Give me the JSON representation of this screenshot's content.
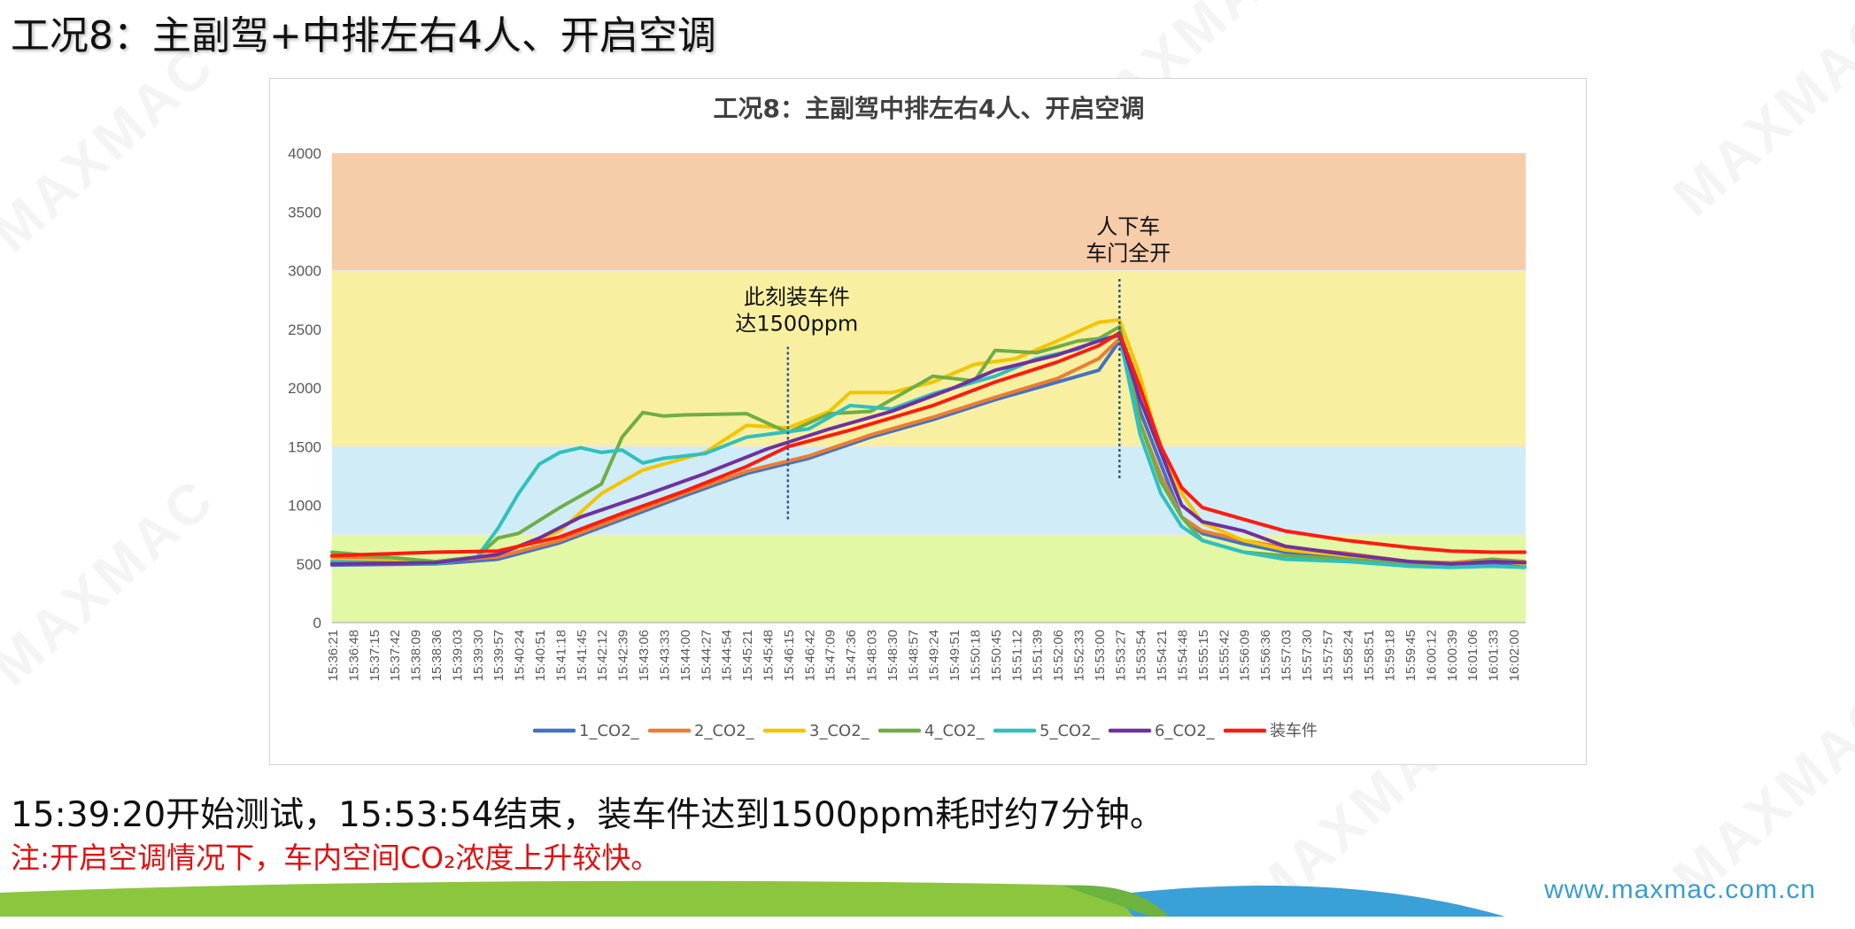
{
  "slide": {
    "title": "工况8：主副驾+中排左右4人、开启空调",
    "summary": "15:39:20开始测试，15:53:54结束，装车件达到1500ppm耗时约7分钟。",
    "note": "注:开启空调情况下，车内空间CO₂浓度上升较快。",
    "footer_url": "www.maxmac.com.cn",
    "watermark": "MAXMAC"
  },
  "chart_data": {
    "type": "line",
    "title": "工况8：主副驾中排左右4人、开启空调",
    "xlabel": "",
    "ylabel": "",
    "ylim": [
      0,
      4000
    ],
    "yticks": [
      0,
      500,
      1000,
      1500,
      2000,
      2500,
      3000,
      3500,
      4000
    ],
    "grid": false,
    "legend_position": "bottom",
    "x_tick_labels": [
      "15:36:21",
      "15:36:48",
      "15:37:15",
      "15:37:42",
      "15:38:09",
      "15:38:36",
      "15:39:03",
      "15:39:30",
      "15:39:57",
      "15:40:24",
      "15:40:51",
      "15:41:18",
      "15:41:45",
      "15:42:12",
      "15:42:39",
      "15:43:06",
      "15:43:33",
      "15:44:00",
      "15:44:27",
      "15:44:54",
      "15:45:21",
      "15:45:48",
      "15:46:15",
      "15:46:42",
      "15:47:09",
      "15:47:36",
      "15:48:03",
      "15:48:30",
      "15:48:57",
      "15:49:24",
      "15:49:51",
      "15:50:18",
      "15:50:45",
      "15:51:12",
      "15:51:39",
      "15:52:06",
      "15:52:33",
      "15:53:00",
      "15:53:27",
      "15:53:54",
      "15:54:21",
      "15:54:48",
      "15:55:15",
      "15:55:42",
      "15:56:09",
      "15:56:36",
      "15:57:03",
      "15:57:30",
      "15:57:57",
      "15:58:24",
      "15:58:51",
      "15:59:18",
      "15:59:45",
      "16:00:12",
      "16:00:39",
      "16:01:06",
      "16:01:33",
      "16:02:00"
    ],
    "bands": [
      {
        "from": 0,
        "to": 750,
        "color": "#e2f8a4"
      },
      {
        "from": 750,
        "to": 1500,
        "color": "#d0ecf6"
      },
      {
        "from": 1500,
        "to": 3000,
        "color": "#f8f0a0"
      },
      {
        "from": 3000,
        "to": 4000,
        "color": "#f7cca9"
      }
    ],
    "series": [
      {
        "name": "1_CO2_",
        "color": "#4472c4",
        "points": [
          [
            "15:36:21",
            490
          ],
          [
            "15:38:36",
            500
          ],
          [
            "15:39:57",
            540
          ],
          [
            "15:41:18",
            680
          ],
          [
            "15:42:39",
            880
          ],
          [
            "15:44:00",
            1080
          ],
          [
            "15:45:21",
            1270
          ],
          [
            "15:46:42",
            1400
          ],
          [
            "15:48:03",
            1580
          ],
          [
            "15:49:24",
            1730
          ],
          [
            "15:50:45",
            1900
          ],
          [
            "15:52:06",
            2050
          ],
          [
            "15:53:00",
            2150
          ],
          [
            "15:53:27",
            2400
          ],
          [
            "15:53:54",
            1800
          ],
          [
            "15:54:21",
            1350
          ],
          [
            "15:54:48",
            900
          ],
          [
            "15:55:15",
            760
          ],
          [
            "15:56:09",
            670
          ],
          [
            "15:57:03",
            600
          ],
          [
            "15:58:24",
            560
          ],
          [
            "15:59:45",
            510
          ],
          [
            "16:00:39",
            490
          ],
          [
            "16:01:33",
            500
          ],
          [
            "16:02:15",
            480
          ]
        ]
      },
      {
        "name": "2_CO2_",
        "color": "#ed7d31",
        "points": [
          [
            "15:36:21",
            560
          ],
          [
            "15:38:36",
            520
          ],
          [
            "15:39:57",
            560
          ],
          [
            "15:41:18",
            700
          ],
          [
            "15:42:39",
            900
          ],
          [
            "15:44:00",
            1100
          ],
          [
            "15:45:21",
            1290
          ],
          [
            "15:46:42",
            1420
          ],
          [
            "15:48:03",
            1600
          ],
          [
            "15:49:24",
            1750
          ],
          [
            "15:50:45",
            1920
          ],
          [
            "15:52:06",
            2080
          ],
          [
            "15:53:00",
            2250
          ],
          [
            "15:53:27",
            2420
          ],
          [
            "15:53:54",
            1700
          ],
          [
            "15:54:21",
            1250
          ],
          [
            "15:54:48",
            900
          ],
          [
            "15:55:15",
            780
          ],
          [
            "15:56:09",
            700
          ],
          [
            "15:57:03",
            640
          ],
          [
            "15:58:24",
            590
          ],
          [
            "15:59:45",
            520
          ],
          [
            "16:00:39",
            510
          ],
          [
            "16:01:33",
            540
          ],
          [
            "16:02:15",
            520
          ]
        ]
      },
      {
        "name": "3_CO2_",
        "color": "#f5c400",
        "points": [
          [
            "15:36:21",
            530
          ],
          [
            "15:38:36",
            520
          ],
          [
            "15:39:57",
            580
          ],
          [
            "15:41:18",
            780
          ],
          [
            "15:42:12",
            1100
          ],
          [
            "15:43:06",
            1300
          ],
          [
            "15:44:27",
            1450
          ],
          [
            "15:45:21",
            1680
          ],
          [
            "15:46:15",
            1660
          ],
          [
            "15:47:09",
            1800
          ],
          [
            "15:47:36",
            1960
          ],
          [
            "15:48:30",
            1960
          ],
          [
            "15:49:24",
            2050
          ],
          [
            "15:50:18",
            2200
          ],
          [
            "15:51:12",
            2250
          ],
          [
            "15:52:06",
            2400
          ],
          [
            "15:53:00",
            2560
          ],
          [
            "15:53:27",
            2580
          ],
          [
            "15:53:54",
            2100
          ],
          [
            "15:54:21",
            1450
          ],
          [
            "15:54:48",
            1100
          ],
          [
            "15:55:15",
            850
          ],
          [
            "15:56:09",
            700
          ],
          [
            "15:57:03",
            620
          ],
          [
            "15:58:24",
            570
          ],
          [
            "15:59:45",
            510
          ],
          [
            "16:00:39",
            500
          ],
          [
            "16:01:33",
            530
          ],
          [
            "16:02:15",
            500
          ]
        ]
      },
      {
        "name": "4_CO2_",
        "color": "#70ad47",
        "points": [
          [
            "15:36:21",
            600
          ],
          [
            "15:38:36",
            520
          ],
          [
            "15:39:30",
            560
          ],
          [
            "15:39:57",
            720
          ],
          [
            "15:40:24",
            760
          ],
          [
            "15:41:18",
            980
          ],
          [
            "15:42:12",
            1180
          ],
          [
            "15:42:39",
            1580
          ],
          [
            "15:43:06",
            1790
          ],
          [
            "15:43:33",
            1760
          ],
          [
            "15:44:00",
            1770
          ],
          [
            "15:45:21",
            1780
          ],
          [
            "15:46:15",
            1620
          ],
          [
            "15:47:09",
            1780
          ],
          [
            "15:48:03",
            1800
          ],
          [
            "15:49:24",
            2100
          ],
          [
            "15:50:18",
            2060
          ],
          [
            "15:50:45",
            2320
          ],
          [
            "15:51:39",
            2300
          ],
          [
            "15:52:33",
            2400
          ],
          [
            "15:53:00",
            2420
          ],
          [
            "15:53:27",
            2520
          ],
          [
            "15:53:54",
            1700
          ],
          [
            "15:54:21",
            1200
          ],
          [
            "15:54:48",
            900
          ],
          [
            "15:55:15",
            700
          ],
          [
            "15:56:09",
            600
          ],
          [
            "15:57:03",
            570
          ],
          [
            "15:58:24",
            540
          ],
          [
            "15:59:45",
            500
          ],
          [
            "16:00:39",
            490
          ],
          [
            "16:01:33",
            540
          ],
          [
            "16:02:15",
            510
          ]
        ]
      },
      {
        "name": "5_CO2_",
        "color": "#2fc0c0",
        "points": [
          [
            "15:36:21",
            520
          ],
          [
            "15:38:36",
            500
          ],
          [
            "15:39:30",
            560
          ],
          [
            "15:39:57",
            800
          ],
          [
            "15:40:24",
            1100
          ],
          [
            "15:40:51",
            1350
          ],
          [
            "15:41:18",
            1450
          ],
          [
            "15:41:45",
            1490
          ],
          [
            "15:42:12",
            1450
          ],
          [
            "15:42:39",
            1470
          ],
          [
            "15:43:06",
            1360
          ],
          [
            "15:43:33",
            1400
          ],
          [
            "15:44:27",
            1440
          ],
          [
            "15:45:21",
            1580
          ],
          [
            "15:46:42",
            1650
          ],
          [
            "15:47:36",
            1850
          ],
          [
            "15:48:30",
            1820
          ],
          [
            "15:49:24",
            1950
          ],
          [
            "15:50:45",
            2100
          ],
          [
            "15:51:39",
            2250
          ],
          [
            "15:52:33",
            2330
          ],
          [
            "15:53:00",
            2410
          ],
          [
            "15:53:27",
            2450
          ],
          [
            "15:53:54",
            1600
          ],
          [
            "15:54:21",
            1100
          ],
          [
            "15:54:48",
            820
          ],
          [
            "15:55:15",
            700
          ],
          [
            "15:56:09",
            600
          ],
          [
            "15:57:03",
            540
          ],
          [
            "15:58:24",
            520
          ],
          [
            "15:59:45",
            480
          ],
          [
            "16:00:39",
            470
          ],
          [
            "16:01:33",
            480
          ],
          [
            "16:02:15",
            470
          ]
        ]
      },
      {
        "name": "6_CO2_",
        "color": "#7030a0",
        "points": [
          [
            "15:36:21",
            500
          ],
          [
            "15:38:36",
            510
          ],
          [
            "15:39:57",
            580
          ],
          [
            "15:40:51",
            720
          ],
          [
            "15:41:45",
            900
          ],
          [
            "15:43:06",
            1080
          ],
          [
            "15:44:27",
            1270
          ],
          [
            "15:45:48",
            1480
          ],
          [
            "15:47:09",
            1650
          ],
          [
            "15:48:30",
            1800
          ],
          [
            "15:49:51",
            2000
          ],
          [
            "15:50:45",
            2150
          ],
          [
            "15:52:06",
            2280
          ],
          [
            "15:53:00",
            2400
          ],
          [
            "15:53:27",
            2450
          ],
          [
            "15:53:54",
            1900
          ],
          [
            "15:54:21",
            1450
          ],
          [
            "15:54:48",
            1000
          ],
          [
            "15:55:15",
            860
          ],
          [
            "15:56:09",
            780
          ],
          [
            "15:57:03",
            650
          ],
          [
            "15:58:24",
            580
          ],
          [
            "15:59:45",
            520
          ],
          [
            "16:00:39",
            500
          ],
          [
            "16:01:33",
            520
          ],
          [
            "16:02:15",
            510
          ]
        ]
      },
      {
        "name": "装车件",
        "color": "#ff1a10",
        "points": [
          [
            "15:36:21",
            570
          ],
          [
            "15:38:36",
            600
          ],
          [
            "15:39:57",
            610
          ],
          [
            "15:41:18",
            730
          ],
          [
            "15:42:39",
            930
          ],
          [
            "15:44:00",
            1120
          ],
          [
            "15:45:21",
            1330
          ],
          [
            "15:46:15",
            1500
          ],
          [
            "15:47:36",
            1640
          ],
          [
            "15:49:24",
            1850
          ],
          [
            "15:50:45",
            2050
          ],
          [
            "15:52:06",
            2220
          ],
          [
            "15:53:00",
            2360
          ],
          [
            "15:53:27",
            2470
          ],
          [
            "15:53:54",
            2000
          ],
          [
            "15:54:21",
            1500
          ],
          [
            "15:54:48",
            1150
          ],
          [
            "15:55:15",
            980
          ],
          [
            "15:56:09",
            880
          ],
          [
            "15:57:03",
            780
          ],
          [
            "15:58:24",
            700
          ],
          [
            "15:59:45",
            640
          ],
          [
            "16:00:39",
            610
          ],
          [
            "16:01:33",
            600
          ],
          [
            "16:02:15",
            600
          ]
        ]
      }
    ],
    "annotations": [
      {
        "lines": [
          "此刻装车件",
          "达1500ppm"
        ],
        "x": "15:46:15",
        "y_from": 880,
        "y_to": 2350
      },
      {
        "lines": [
          "人下车",
          "车门全开"
        ],
        "x": "15:53:27",
        "y_from": 1230,
        "y_to": 2950
      }
    ]
  }
}
